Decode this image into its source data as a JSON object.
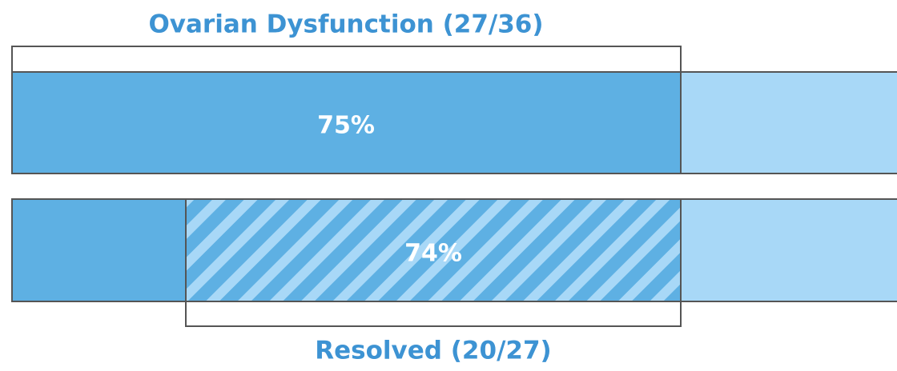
{
  "title": "Ovarian Dysfunction (27/36)",
  "bars": [
    {
      "label": "75%"
    },
    {
      "label": "74%"
    }
  ],
  "subgroup_label": "Resolved (20/27)"
}
